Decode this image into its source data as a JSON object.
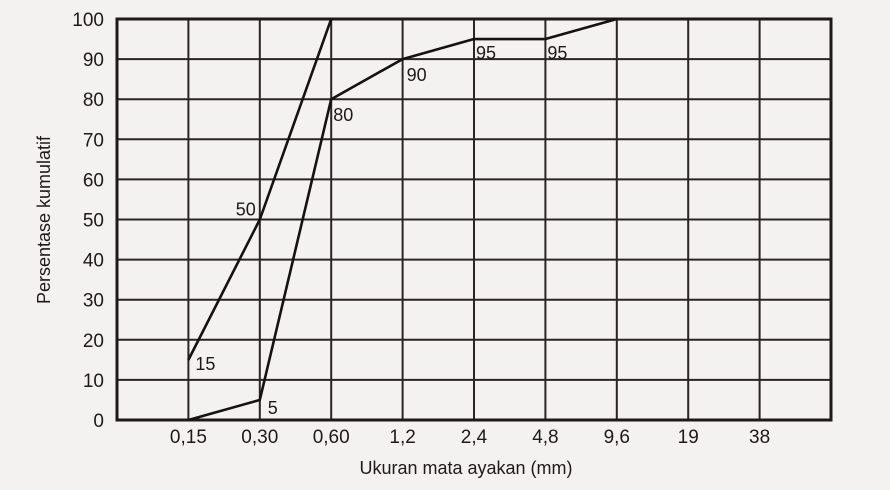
{
  "chart_data": {
    "type": "line",
    "title": "",
    "xlabel": "Ukuran mata ayakan (mm)",
    "ylabel": "Persentase kumulatif",
    "categories": [
      "",
      "0,15",
      "0,30",
      "0,60",
      "1,2",
      "2,4",
      "4,8",
      "9,6",
      "19",
      "38"
    ],
    "x_tick_labels": [
      "0,15",
      "0,30",
      "0,60",
      "1,2",
      "2,4",
      "4,8",
      "9,6",
      "19",
      "38"
    ],
    "y_tick_labels": [
      "0",
      "10",
      "20",
      "30",
      "40",
      "50",
      "60",
      "70",
      "80",
      "90",
      "100"
    ],
    "ylim": [
      0,
      100
    ],
    "grid": true,
    "legend": null,
    "series": [
      {
        "name": "upper-curve",
        "x": [
          "0,15",
          "0,30",
          "0,60"
        ],
        "values": [
          15,
          50,
          100
        ],
        "labels": [
          "15",
          "50",
          ""
        ]
      },
      {
        "name": "lower-curve",
        "x": [
          "0,15",
          "0,30",
          "0,60",
          "1,2",
          "2,4",
          "4,8",
          "9,6"
        ],
        "values": [
          0,
          5,
          80,
          90,
          95,
          95,
          100
        ],
        "labels": [
          "",
          "5",
          "80",
          "90",
          "95",
          "95",
          ""
        ]
      }
    ]
  }
}
